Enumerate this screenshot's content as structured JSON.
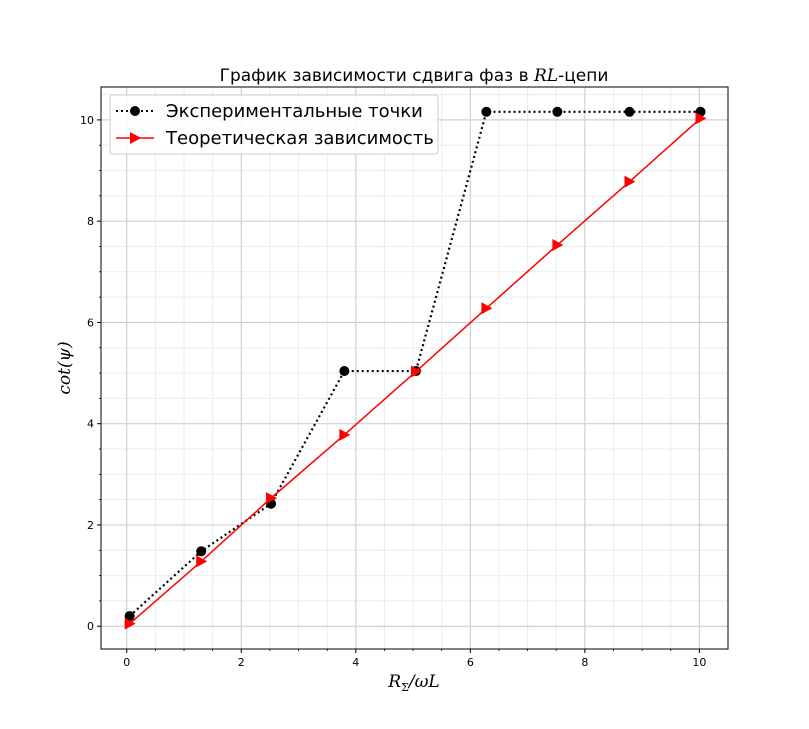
{
  "chart_data": {
    "type": "line",
    "title_main": "График зависимости сдвига фаз в ",
    "title_italic": "RL",
    "title_suffix": "-цепи",
    "xlabel_main": "R",
    "xlabel_sub": "Σ",
    "xlabel_rest": "/ωL",
    "ylabel": "cot(ψ)",
    "xlim": [
      -0.45,
      10.5
    ],
    "ylim": [
      -0.45,
      10.65
    ],
    "x_ticks": [
      "0",
      "2",
      "4",
      "6",
      "8",
      "10"
    ],
    "y_ticks": [
      "0",
      "2",
      "4",
      "6",
      "8",
      "10"
    ],
    "grid": true,
    "legend_position": "upper-left",
    "series": [
      {
        "name": "Экспериментальные точки",
        "color": "#000000",
        "line_style": "dotted",
        "marker": "circle",
        "x": [
          0.05,
          1.3,
          2.52,
          3.8,
          5.05,
          6.28,
          7.52,
          8.78,
          10.02
        ],
        "y": [
          0.2,
          1.48,
          2.42,
          5.04,
          5.04,
          10.16,
          10.16,
          10.16,
          10.16
        ]
      },
      {
        "name": "Теоретическая зависимость",
        "color": "#ff0000",
        "line_style": "solid",
        "marker": "triangle-right",
        "x": [
          0.05,
          1.3,
          2.52,
          3.8,
          5.05,
          6.28,
          7.52,
          8.78,
          10.02
        ],
        "y": [
          0.05,
          1.28,
          2.53,
          3.78,
          5.03,
          6.28,
          7.53,
          8.78,
          10.03
        ]
      }
    ]
  }
}
